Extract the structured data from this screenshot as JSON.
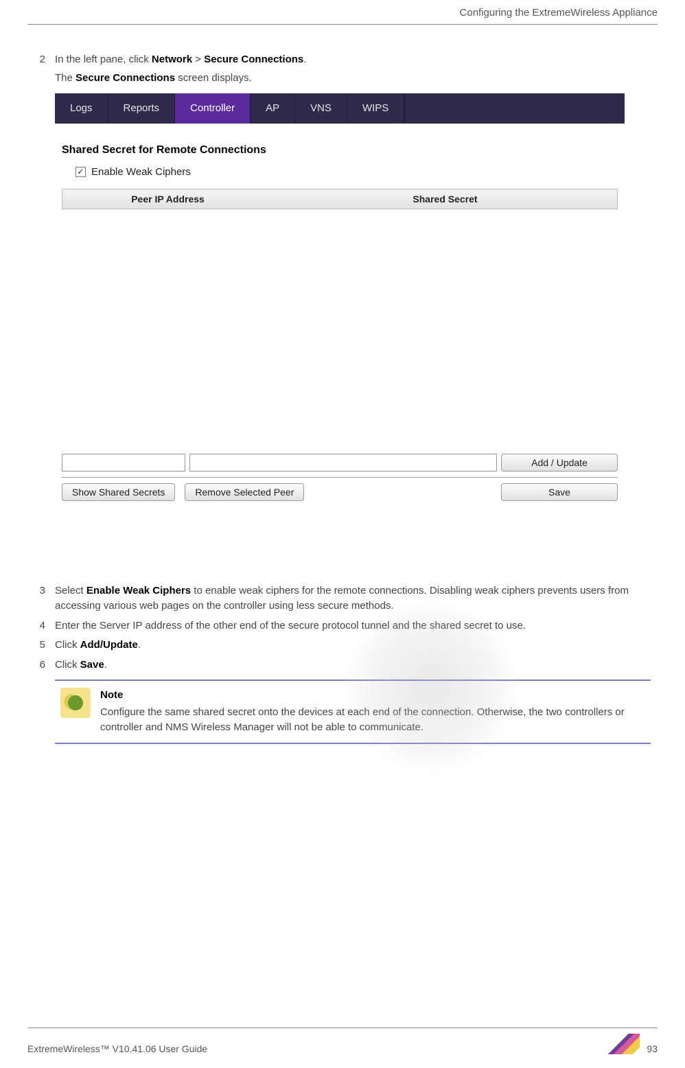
{
  "header": {
    "title": "Configuring the ExtremeWireless Appliance"
  },
  "steps": {
    "s2": {
      "num": "2",
      "prefix": "In the left pane, click ",
      "b1": "Network",
      "mid": "  > ",
      "b2": "Secure Connections",
      "suffix": ".",
      "sub_prefix": "The ",
      "sub_bold": "Secure Connections",
      "sub_suffix": " screen displays."
    },
    "s3": {
      "num": "3",
      "prefix": "Select ",
      "b1": "Enable Weak Ciphers",
      "rest": " to enable weak ciphers for the remote connections. Disabling weak ciphers prevents users from accessing various web pages on the controller using less secure methods."
    },
    "s4": {
      "num": "4",
      "text": "Enter the Server IP address of the other end of the secure protocol tunnel and the shared secret to use."
    },
    "s5": {
      "num": "5",
      "prefix": "Click ",
      "b1": "Add/Update",
      "suffix": "."
    },
    "s6": {
      "num": "6",
      "prefix": "Click ",
      "b1": "Save",
      "suffix": "."
    }
  },
  "screenshot": {
    "tabs": [
      "Logs",
      "Reports",
      "Controller",
      "AP",
      "VNS",
      "WIPS"
    ],
    "active_tab_index": 2,
    "tab_bg": "#302a4a",
    "tab_active_bg": "#5b2a9d",
    "section_heading": "Shared Secret for Remote Connections",
    "checkbox_checked": true,
    "checkbox_label": "Enable Weak Ciphers",
    "table": {
      "col1": "Peer IP Address",
      "col2": "Shared Secret"
    },
    "inputs": {
      "ip_value": "",
      "secret_value": ""
    },
    "buttons": {
      "add_update": "Add / Update",
      "show_secrets": "Show Shared Secrets",
      "remove_peer": "Remove Selected Peer",
      "save": "Save"
    }
  },
  "note": {
    "title": "Note",
    "body": "Configure the same shared secret onto the devices at each end of the connection. Otherwise, the two controllers or controller and NMS Wireless Manager will not be able to communicate."
  },
  "footer": {
    "left": "ExtremeWireless™ V10.41.06 User Guide",
    "page": "93"
  },
  "colors": {
    "note_border": "#7a7fbf",
    "body_text": "#444444",
    "heading_text": "#000000"
  }
}
